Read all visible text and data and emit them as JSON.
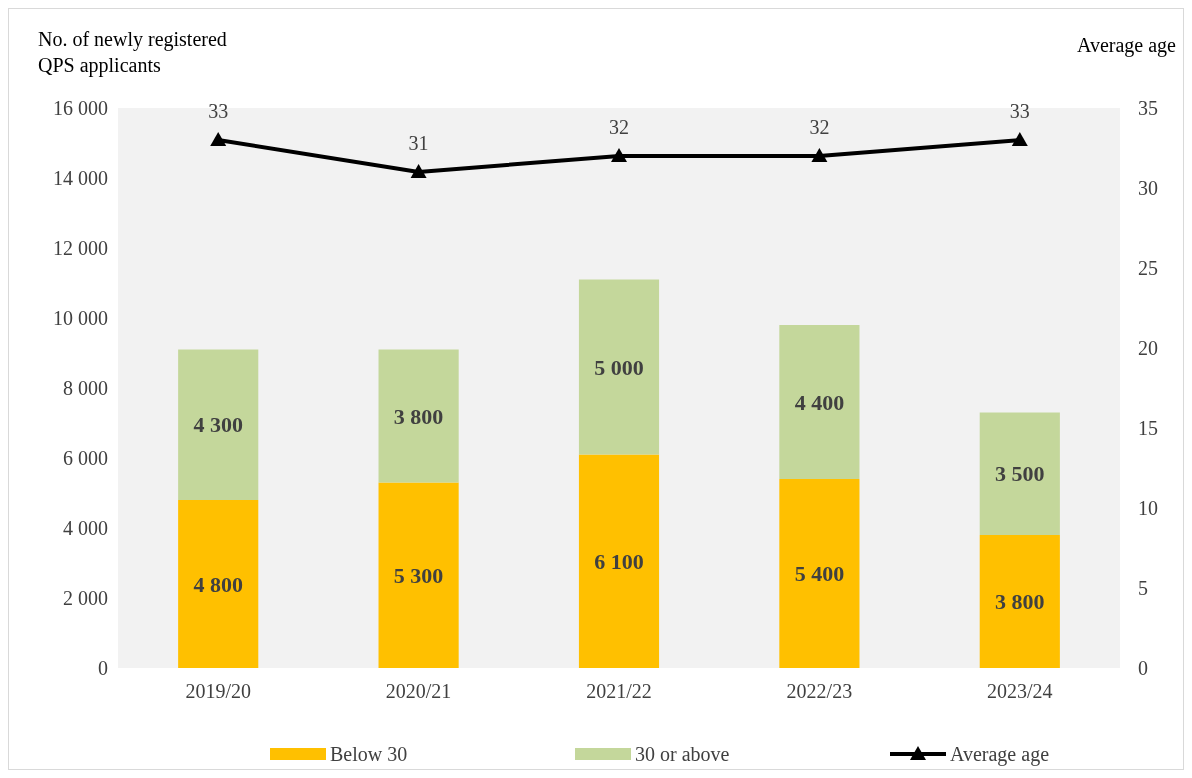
{
  "chart_data": {
    "type": "bar",
    "stacked": true,
    "ylabel": "No. of newly registered QPS applicants",
    "y2label": "Average age",
    "categories": [
      "2019/20",
      "2020/21",
      "2021/22",
      "2022/23",
      "2023/24"
    ],
    "series": [
      {
        "name": "Below 30",
        "color": "#ffc000",
        "values": [
          4800,
          5300,
          6100,
          5400,
          3800
        ],
        "value_labels": [
          "4 800",
          "5 300",
          "6 100",
          "5 400",
          "3 800"
        ]
      },
      {
        "name": "30 or above",
        "color": "#c4d79b",
        "values": [
          4300,
          3800,
          5000,
          4400,
          3500
        ],
        "value_labels": [
          "4 300",
          "3 800",
          "5 000",
          "4 400",
          "3 500"
        ]
      },
      {
        "name": "Average age",
        "type": "line",
        "axis": "y2",
        "color": "#000000",
        "marker": "triangle",
        "values": [
          33,
          31,
          32,
          32,
          33
        ],
        "value_labels": [
          "33",
          "31",
          "32",
          "32",
          "33"
        ]
      }
    ],
    "ylim": [
      0,
      16000
    ],
    "yticks": [
      0,
      {
        "value": 2000,
        "label": "2 000"
      },
      {
        "value": 4000,
        "label": "4 000"
      },
      {
        "value": 6000,
        "label": "6 000"
      },
      {
        "value": 8000,
        "label": "8 000"
      },
      {
        "value": 10000,
        "label": "10 000"
      },
      {
        "value": 12000,
        "label": "12 000"
      },
      {
        "value": 14000,
        "label": "14 000"
      },
      {
        "value": 16000,
        "label": "16 000"
      }
    ],
    "y2lim": [
      0,
      35
    ],
    "y2ticks": [
      0,
      5,
      10,
      15,
      20,
      25,
      30,
      35
    ],
    "legend": "bottom",
    "grid": false
  }
}
